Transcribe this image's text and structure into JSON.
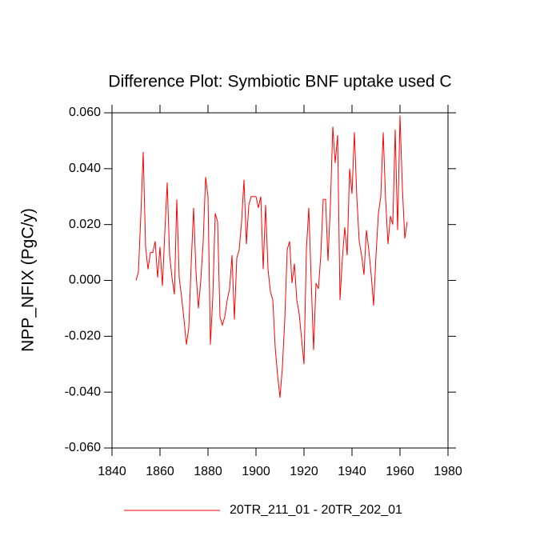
{
  "chart_data": {
    "type": "line",
    "title": "Difference Plot: Symbiotic BNF uptake used C",
    "y_label": "NPP_NFIX  (PgC/y)",
    "x": [
      1850,
      1851,
      1852,
      1853,
      1854,
      1855,
      1856,
      1857,
      1858,
      1859,
      1860,
      1861,
      1862,
      1863,
      1864,
      1865,
      1866,
      1867,
      1868,
      1869,
      1870,
      1871,
      1872,
      1873,
      1874,
      1875,
      1876,
      1877,
      1878,
      1879,
      1880,
      1881,
      1882,
      1883,
      1884,
      1885,
      1886,
      1887,
      1888,
      1889,
      1890,
      1891,
      1892,
      1893,
      1894,
      1895,
      1896,
      1897,
      1898,
      1899,
      1900,
      1901,
      1902,
      1903,
      1904,
      1905,
      1906,
      1907,
      1908,
      1909,
      1910,
      1911,
      1912,
      1913,
      1914,
      1915,
      1916,
      1917,
      1918,
      1919,
      1920,
      1921,
      1922,
      1923,
      1924,
      1925,
      1926,
      1927,
      1928,
      1929,
      1930,
      1931,
      1932,
      1933,
      1934,
      1935,
      1936,
      1937,
      1938,
      1939,
      1940,
      1941,
      1942,
      1943,
      1944,
      1945,
      1946,
      1947,
      1948,
      1949,
      1950,
      1951,
      1952,
      1953,
      1954,
      1955,
      1956,
      1957,
      1958,
      1959,
      1960,
      1961,
      1962,
      1963
    ],
    "series": [
      {
        "name": "20TR_211_01 - 20TR_202_01",
        "color": "#ff0000",
        "values": [
          0.0,
          0.003,
          0.023,
          0.046,
          0.012,
          0.004,
          0.01,
          0.01,
          0.014,
          0.001,
          0.012,
          -0.002,
          0.017,
          0.035,
          0.009,
          0.001,
          -0.005,
          0.029,
          0.001,
          -0.006,
          -0.014,
          -0.023,
          -0.017,
          0.006,
          0.026,
          0.003,
          -0.01,
          0.0,
          0.014,
          0.037,
          0.03,
          -0.023,
          -0.006,
          0.024,
          0.021,
          -0.013,
          -0.016,
          -0.013,
          -0.007,
          -0.003,
          0.009,
          -0.014,
          0.008,
          0.011,
          0.021,
          0.036,
          0.013,
          0.027,
          0.03,
          0.03,
          0.03,
          0.026,
          0.03,
          0.004,
          0.027,
          0.004,
          -0.004,
          -0.007,
          -0.024,
          -0.034,
          -0.042,
          -0.031,
          -0.014,
          0.011,
          0.014,
          -0.001,
          0.006,
          -0.007,
          -0.012,
          -0.021,
          -0.03,
          0.011,
          0.026,
          0.0,
          -0.025,
          -0.001,
          -0.003,
          0.009,
          0.029,
          0.029,
          0.007,
          0.027,
          0.055,
          0.042,
          0.052,
          -0.007,
          0.008,
          0.019,
          0.009,
          0.04,
          0.031,
          0.053,
          0.03,
          0.014,
          0.009,
          0.002,
          0.018,
          0.011,
          0.002,
          -0.009,
          0.009,
          0.024,
          0.03,
          0.053,
          0.029,
          0.013,
          0.023,
          0.02,
          0.054,
          0.018,
          0.059,
          0.033,
          0.015,
          0.021
        ]
      }
    ],
    "xlim": [
      1840,
      1980
    ],
    "xticks": [
      1840,
      1860,
      1880,
      1900,
      1920,
      1940,
      1960,
      1980
    ],
    "ylim": [
      -0.06,
      0.06
    ],
    "yticks": [
      {
        "value": -0.06,
        "label": "-0.060"
      },
      {
        "value": -0.04,
        "label": "-0.040"
      },
      {
        "value": -0.02,
        "label": "-0.020"
      },
      {
        "value": 0,
        "label": "0.000"
      },
      {
        "value": 0.02,
        "label": "0.020"
      },
      {
        "value": 0.04,
        "label": "0.040"
      },
      {
        "value": 0.06,
        "label": "0.060"
      }
    ],
    "legend": "bottom"
  }
}
